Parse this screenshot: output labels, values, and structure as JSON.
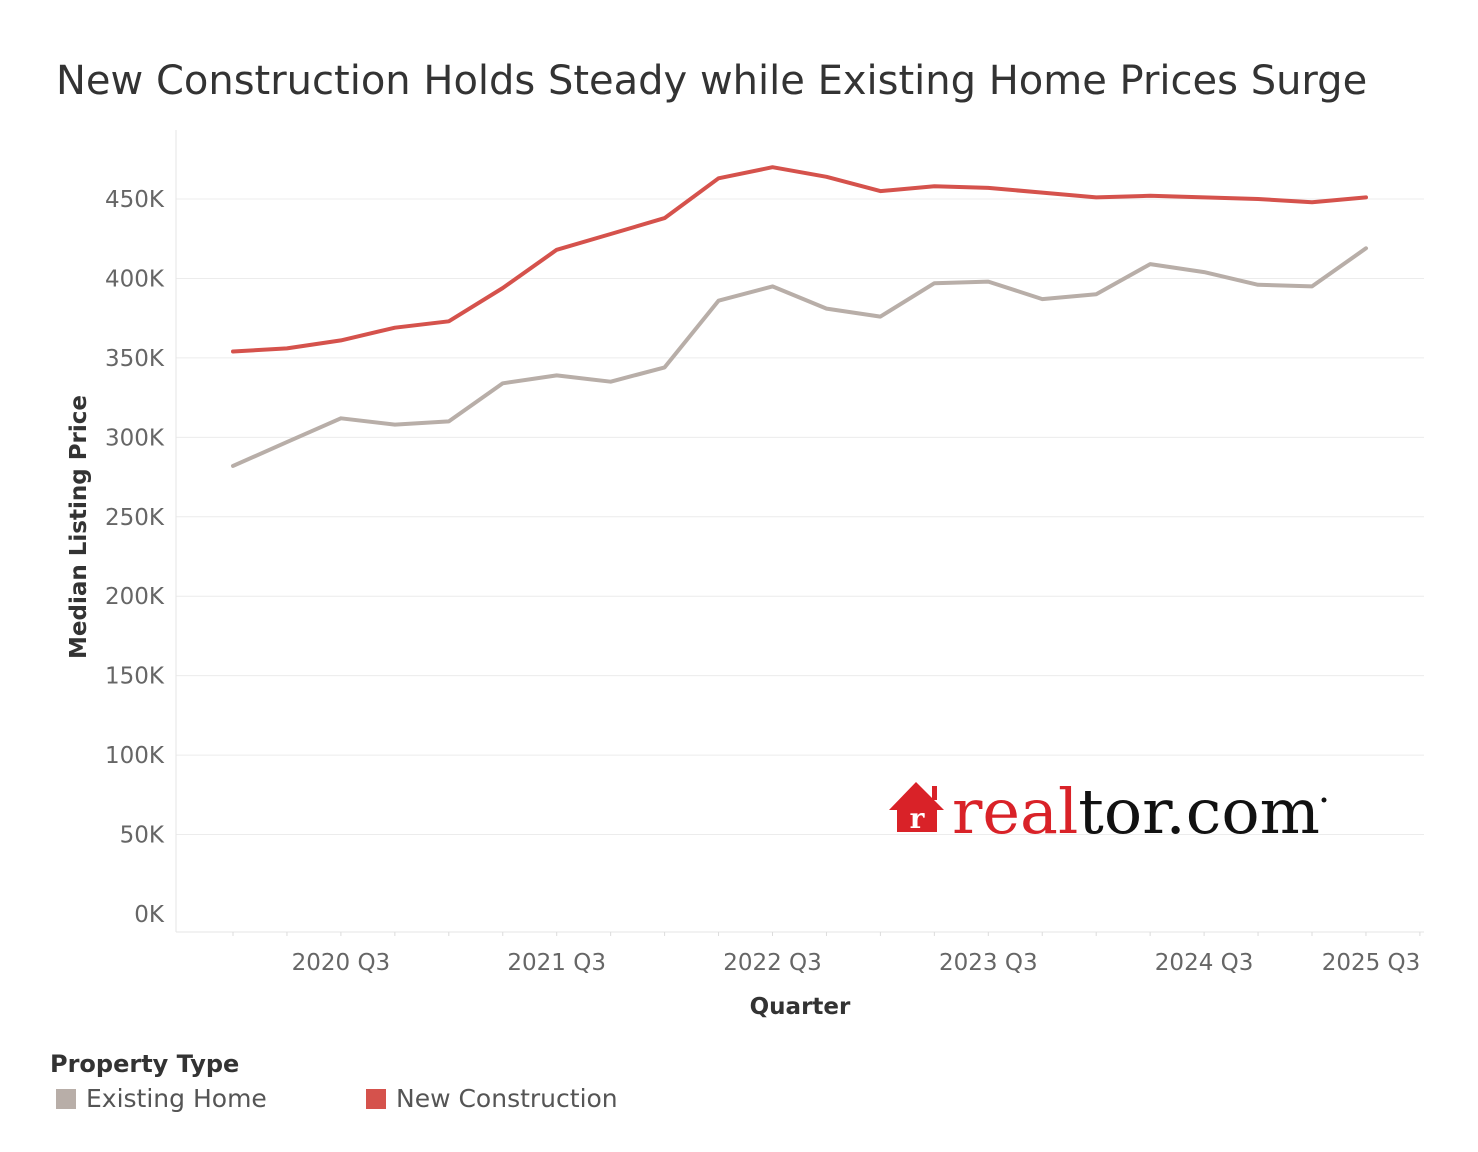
{
  "colors": {
    "existing_home": "#b8aea8",
    "new_construction": "#d5524c",
    "gridline": "#ececec",
    "brand_red": "#d92228",
    "brand_black": "#111111"
  },
  "logo": {
    "part1": "real",
    "part2": "tor.com"
  },
  "legend": {
    "title": "Property Type",
    "items": [
      {
        "label": "Existing Home",
        "color": "#b8aea8"
      },
      {
        "label": "New Construction",
        "color": "#d5524c"
      }
    ]
  },
  "chart_data": {
    "type": "line",
    "title": "New Construction Holds Steady while Existing Home Prices Surge",
    "xlabel": "Quarter",
    "ylabel": "Median Listing Price",
    "ylim": [
      0,
      490000
    ],
    "yticks": [
      0,
      50000,
      100000,
      150000,
      200000,
      250000,
      300000,
      350000,
      400000,
      450000
    ],
    "ytick_labels": [
      "0K",
      "50K",
      "100K",
      "150K",
      "200K",
      "250K",
      "300K",
      "350K",
      "400K",
      "450K"
    ],
    "x": [
      "2020 Q1",
      "2020 Q2",
      "2020 Q3",
      "2020 Q4",
      "2021 Q1",
      "2021 Q2",
      "2021 Q3",
      "2021 Q4",
      "2022 Q1",
      "2022 Q2",
      "2022 Q3",
      "2022 Q4",
      "2023 Q1",
      "2023 Q2",
      "2023 Q3",
      "2023 Q4",
      "2024 Q1",
      "2024 Q2",
      "2024 Q3",
      "2024 Q4",
      "2025 Q1",
      "2025 Q2"
    ],
    "xtick_labels": [
      {
        "quarter": "2020 Q3",
        "label": "2020 Q3"
      },
      {
        "quarter": "2021 Q3",
        "label": "2021 Q3"
      },
      {
        "quarter": "2022 Q3",
        "label": "2022 Q3"
      },
      {
        "quarter": "2023 Q3",
        "label": "2023 Q3"
      },
      {
        "quarter": "2024 Q3",
        "label": "2024 Q3"
      },
      {
        "quarter": "2025 Q3",
        "label": "2025 Q3"
      }
    ],
    "grid": true,
    "legend_position": "bottom-left",
    "series": [
      {
        "name": "Existing Home",
        "color": "#b8aea8",
        "values": [
          282000,
          297000,
          312000,
          308000,
          310000,
          334000,
          339000,
          335000,
          344000,
          386000,
          395000,
          381000,
          376000,
          397000,
          398000,
          387000,
          390000,
          409000,
          404000,
          396000,
          395000,
          419000
        ]
      },
      {
        "name": "New Construction",
        "color": "#d5524c",
        "values": [
          354000,
          356000,
          361000,
          369000,
          373000,
          394000,
          418000,
          428000,
          438000,
          463000,
          470000,
          464000,
          455000,
          458000,
          457000,
          454000,
          451000,
          452000,
          451000,
          450000,
          448000,
          451000
        ]
      }
    ]
  }
}
